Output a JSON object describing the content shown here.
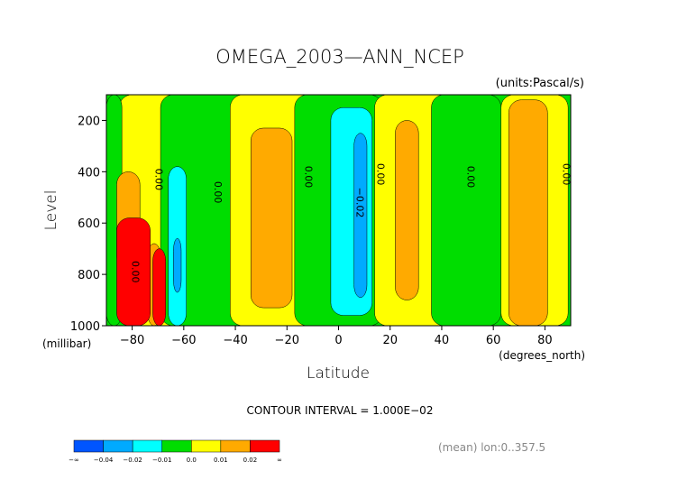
{
  "chart_data": {
    "type": "heatmap",
    "title": "OMEGA_2003—ANN_NCEP",
    "units_label": "(units:Pascal/s)",
    "xlabel": "Latitude",
    "ylabel": "Level",
    "x_units_label": "(degrees_north)",
    "y_units_label": "(millibar)",
    "xlim": [
      -90,
      90
    ],
    "ylim": [
      1000,
      100
    ],
    "x_ticks": [
      -80,
      -60,
      -40,
      -20,
      0,
      20,
      40,
      60,
      80
    ],
    "x_tick_labels": [
      "−80",
      "−60",
      "−40",
      "−20",
      "0",
      "20",
      "40",
      "60",
      "80"
    ],
    "y_ticks": [
      200,
      400,
      600,
      800,
      1000
    ],
    "y_tick_labels": [
      "200",
      "400",
      "600",
      "800",
      "1000"
    ],
    "contour_interval_text": "CONTOUR INTERVAL = 1.000E−02",
    "footer_text": "(mean) lon:0..357.5",
    "contour_labels": [
      {
        "text": "0.00",
        "lat": -71,
        "lev": 430
      },
      {
        "text": "0.00",
        "lat": -48,
        "lev": 480
      },
      {
        "text": "0.00",
        "lat": -13,
        "lev": 420
      },
      {
        "text": "0.00",
        "lat": 15,
        "lev": 410
      },
      {
        "text": "0.00",
        "lat": 50,
        "lev": 420
      },
      {
        "text": "0.00",
        "lat": 87,
        "lev": 410
      },
      {
        "text": "−0.02",
        "lat": 7,
        "lev": 520
      },
      {
        "text": "0.00",
        "lat": -80,
        "lev": 790
      }
    ],
    "regions": [
      {
        "name": "yellow-left",
        "color": "#ffff00",
        "lat": [
          -85,
          -59
        ],
        "lev": [
          100,
          1000
        ]
      },
      {
        "name": "green-south-polar",
        "color": "#00dd00",
        "lat": [
          -90,
          -84
        ],
        "lev": [
          100,
          1000
        ]
      },
      {
        "name": "green-southern-mid",
        "color": "#00dd00",
        "lat": [
          -69,
          -27
        ],
        "lev": [
          100,
          1000
        ]
      },
      {
        "name": "yellow-southern-subtropics",
        "color": "#ffff00",
        "lat": [
          -42,
          -4
        ],
        "lev": [
          100,
          1000
        ]
      },
      {
        "name": "green-equatorial",
        "color": "#00dd00",
        "lat": [
          -17,
          17
        ],
        "lev": [
          100,
          1000
        ]
      },
      {
        "name": "yellow-northern-subtropics",
        "color": "#ffff00",
        "lat": [
          14,
          44
        ],
        "lev": [
          100,
          1000
        ]
      },
      {
        "name": "green-northern-mid",
        "color": "#00dd00",
        "lat": [
          36,
          63
        ],
        "lev": [
          100,
          1000
        ]
      },
      {
        "name": "yellow-north-polar",
        "color": "#ffff00",
        "lat": [
          63,
          89
        ],
        "lev": [
          100,
          1000
        ]
      },
      {
        "name": "orange-southern-subtropics",
        "color": "#ffaa00",
        "lat": [
          -34,
          -18
        ],
        "lev": [
          230,
          930
        ]
      },
      {
        "name": "orange-northern-subtropics",
        "color": "#ffaa00",
        "lat": [
          22,
          31
        ],
        "lev": [
          200,
          900
        ]
      },
      {
        "name": "orange-north-polar",
        "color": "#ffaa00",
        "lat": [
          66,
          81
        ],
        "lev": [
          120,
          1000
        ]
      },
      {
        "name": "orange-south-polar",
        "color": "#ffaa00",
        "lat": [
          -86,
          -77
        ],
        "lev": [
          400,
          780
        ]
      },
      {
        "name": "cyan-southern",
        "color": "#00ffff",
        "lat": [
          -66,
          -59
        ],
        "lev": [
          380,
          1000
        ]
      },
      {
        "name": "cyan-equatorial",
        "color": "#00ffff",
        "lat": [
          -3,
          13
        ],
        "lev": [
          150,
          960
        ]
      },
      {
        "name": "blue-southern",
        "color": "#00aaff",
        "lat": [
          -64,
          -61
        ],
        "lev": [
          660,
          870
        ]
      },
      {
        "name": "blue-equatorial",
        "color": "#00aaff",
        "lat": [
          6,
          11
        ],
        "lev": [
          250,
          890
        ]
      },
      {
        "name": "orange-antarctic-edge",
        "color": "#ffaa00",
        "lat": [
          -74,
          -69
        ],
        "lev": [
          680,
          1000
        ]
      },
      {
        "name": "red-antarctic",
        "color": "#ff0000",
        "lat": [
          -86,
          -73
        ],
        "lev": [
          580,
          1000
        ]
      },
      {
        "name": "red-antarctic-tongue",
        "color": "#ff0000",
        "lat": [
          -72,
          -67
        ],
        "lev": [
          700,
          1000
        ]
      }
    ],
    "colorbar": {
      "colors": [
        "#0055ff",
        "#00aaff",
        "#00ffff",
        "#00dd00",
        "#ffff00",
        "#ffaa00",
        "#ff0000"
      ],
      "labels": [
        "−∞",
        "−0.04",
        "−0.02",
        "−0.01",
        "0.0",
        "0.01",
        "0.02",
        "∞"
      ]
    }
  }
}
